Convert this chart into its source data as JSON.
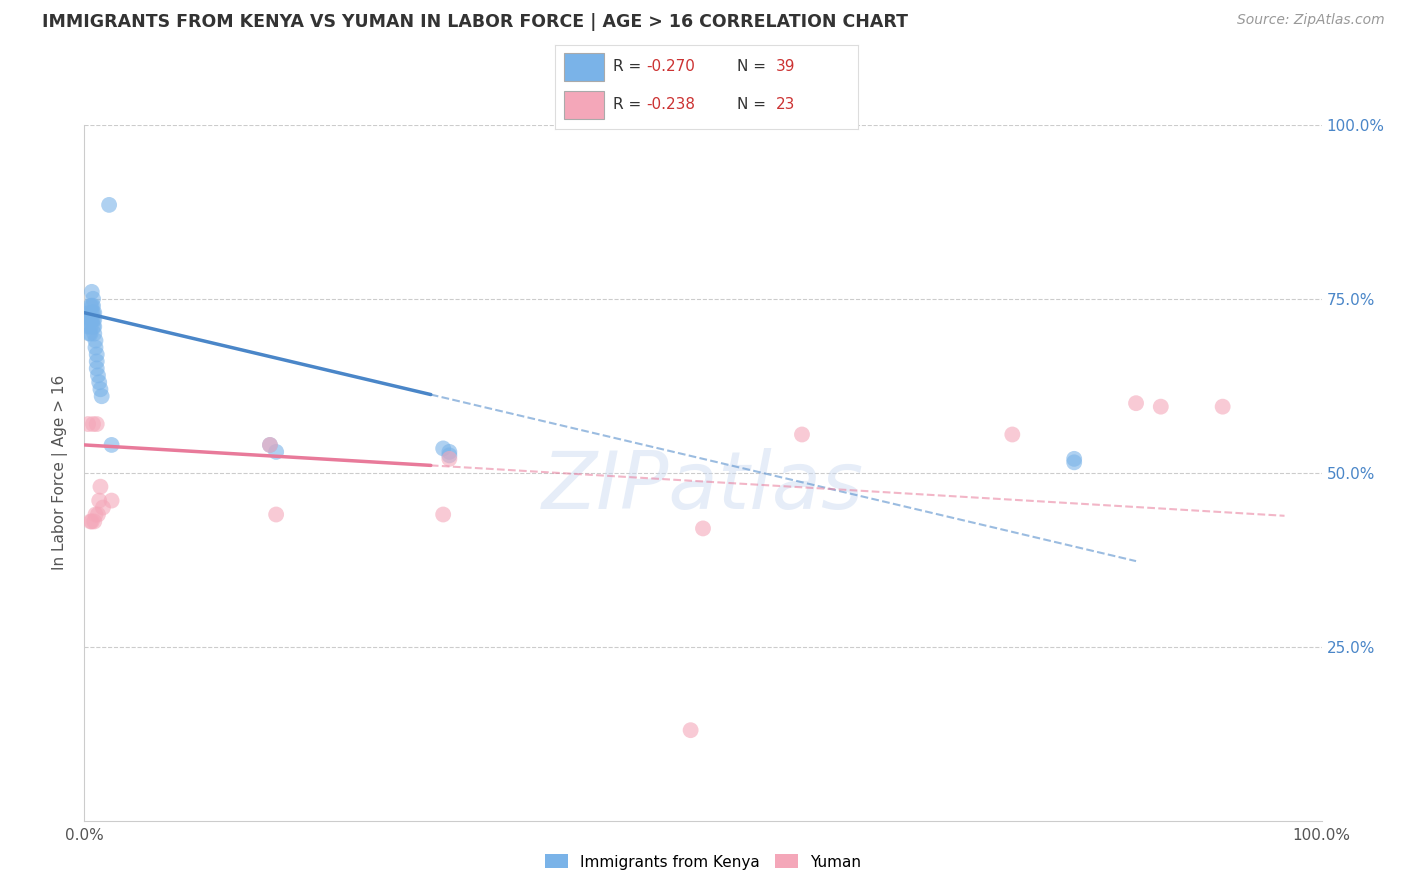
{
  "title": "IMMIGRANTS FROM KENYA VS YUMAN IN LABOR FORCE | AGE > 16 CORRELATION CHART",
  "source": "Source: ZipAtlas.com",
  "ylabel": "In Labor Force | Age > 16",
  "xlim": [
    0.0,
    1.0
  ],
  "ylim": [
    0.0,
    1.0
  ],
  "xticks": [
    0.0,
    0.1,
    0.2,
    0.3,
    0.4,
    0.5,
    0.6,
    0.7,
    0.8,
    0.9,
    1.0
  ],
  "yticks": [
    0.0,
    0.25,
    0.5,
    0.75,
    1.0
  ],
  "xticklabels": [
    "0.0%",
    "",
    "",
    "",
    "",
    "",
    "",
    "",
    "",
    "",
    "100.0%"
  ],
  "right_yticklabels": [
    "",
    "25.0%",
    "50.0%",
    "75.0%",
    "100.0%"
  ],
  "background_color": "#ffffff",
  "watermark": "ZIPatlas",
  "kenya_color": "#7ab3e8",
  "yuman_color": "#f4a7b9",
  "kenya_line_color": "#4a86c8",
  "yuman_line_color": "#e87a9a",
  "kenya_R": -0.27,
  "kenya_N": 39,
  "yuman_R": -0.238,
  "yuman_N": 23,
  "kenya_x": [
    0.003,
    0.003,
    0.004,
    0.004,
    0.005,
    0.005,
    0.005,
    0.005,
    0.006,
    0.006,
    0.006,
    0.006,
    0.007,
    0.007,
    0.007,
    0.007,
    0.007,
    0.008,
    0.008,
    0.008,
    0.008,
    0.009,
    0.009,
    0.01,
    0.01,
    0.01,
    0.011,
    0.012,
    0.013,
    0.014,
    0.02,
    0.022,
    0.15,
    0.155,
    0.29,
    0.295,
    0.295,
    0.8,
    0.8
  ],
  "kenya_y": [
    0.72,
    0.71,
    0.73,
    0.7,
    0.74,
    0.72,
    0.71,
    0.7,
    0.76,
    0.74,
    0.73,
    0.72,
    0.75,
    0.74,
    0.73,
    0.72,
    0.71,
    0.73,
    0.72,
    0.71,
    0.7,
    0.69,
    0.68,
    0.67,
    0.66,
    0.65,
    0.64,
    0.63,
    0.62,
    0.61,
    0.885,
    0.54,
    0.54,
    0.53,
    0.535,
    0.53,
    0.525,
    0.52,
    0.515
  ],
  "yuman_x": [
    0.003,
    0.005,
    0.006,
    0.007,
    0.008,
    0.009,
    0.01,
    0.011,
    0.012,
    0.013,
    0.015,
    0.022,
    0.15,
    0.155,
    0.29,
    0.295,
    0.49,
    0.5,
    0.75,
    0.85,
    0.87,
    0.92,
    0.58
  ],
  "yuman_y": [
    0.57,
    0.43,
    0.43,
    0.57,
    0.43,
    0.44,
    0.57,
    0.44,
    0.46,
    0.48,
    0.45,
    0.46,
    0.54,
    0.44,
    0.44,
    0.52,
    0.13,
    0.42,
    0.555,
    0.6,
    0.595,
    0.595,
    0.555
  ]
}
